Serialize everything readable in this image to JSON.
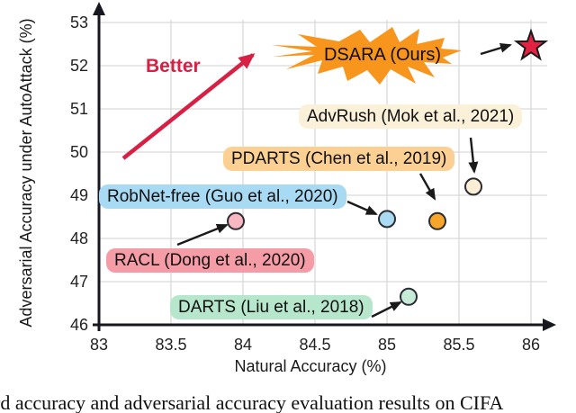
{
  "chart_data": {
    "type": "scatter",
    "title": "",
    "xlabel": "Natural Accuracy (%)",
    "ylabel": "Adversarial Accuracy under AutoAttack (%)",
    "xlim": [
      83,
      86
    ],
    "ylim": [
      46,
      53
    ],
    "x_ticks": [
      83,
      83.5,
      84,
      84.5,
      85,
      85.5,
      86
    ],
    "x_tick_labels": [
      "83",
      "83.5",
      "84",
      "84.5",
      "85",
      "85.5",
      "86"
    ],
    "y_ticks": [
      46,
      47,
      48,
      49,
      50,
      51,
      52,
      53
    ],
    "y_tick_labels": [
      "46",
      "47",
      "48",
      "49",
      "50",
      "51",
      "52",
      "53"
    ],
    "grid": true,
    "legend_position": "none",
    "points": [
      {
        "label": "DSARA (Ours)",
        "x": 86.0,
        "y": 52.45,
        "marker": "star",
        "marker_fill": "#e32243",
        "label_bg": "#f8951d"
      },
      {
        "label": "AdvRush (Mok et al., 2021)",
        "x": 85.6,
        "y": 49.2,
        "marker": "circle",
        "marker_fill": "#faeed6",
        "label_bg": "#fbf1d9"
      },
      {
        "label": "PDARTS (Chen et al., 2019)",
        "x": 85.35,
        "y": 48.4,
        "marker": "circle",
        "marker_fill": "#f6a62b",
        "label_bg": "#fbd092"
      },
      {
        "label": "RobNet-free (Guo et al., 2020)",
        "x": 85.0,
        "y": 48.45,
        "marker": "circle",
        "marker_fill": "#abdbf2",
        "label_bg": "#a9daf3"
      },
      {
        "label": "RACL (Dong et al., 2020)",
        "x": 83.95,
        "y": 48.4,
        "marker": "circle",
        "marker_fill": "#f8b7c1",
        "label_bg": "#f59ca7"
      },
      {
        "label": "DARTS (Liu et al., 2018)",
        "x": 85.15,
        "y": 46.65,
        "marker": "circle",
        "marker_fill": "#c6ecd8",
        "label_bg": "#b6e7cd"
      }
    ],
    "annotations": [
      {
        "text": "Better",
        "color": "#d81f44"
      }
    ]
  },
  "figure": {
    "better_label": "Better",
    "caption": "rd accuracy and adversarial accuracy evaluation results on CIFA"
  },
  "colors": {
    "axis": "#17171f",
    "grid": "#d9d9d9",
    "burst_orange": "#f8951d",
    "star_red": "#e32243",
    "better_red": "#d81f44",
    "marker_stroke": "#2b2b33",
    "arrow_black": "#1a1a1a"
  }
}
